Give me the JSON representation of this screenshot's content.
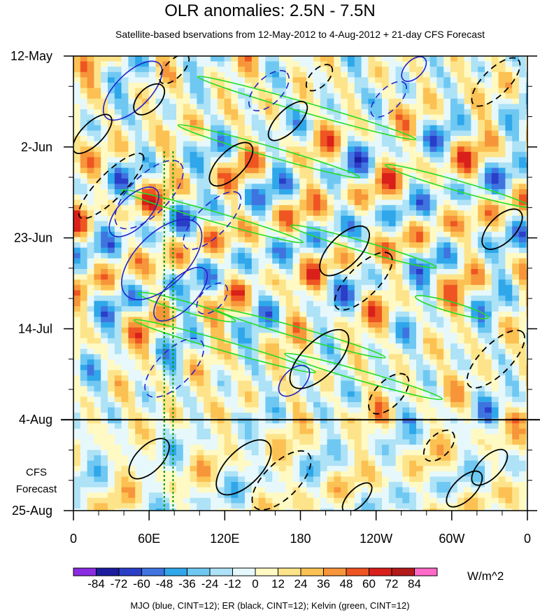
{
  "title": "OLR anomalies: 2.5N - 7.5N",
  "subtitle": "Satellite-based bservations from 12-May-2012 to 4-Aug-2012 + 21-day CFS Forecast",
  "forecast_label": "CFS\nForecast",
  "units": "W/m^2",
  "footer": "MJO (blue, CINT=12); ER (black, CINT=12); Kelvin (green, CINT=12)",
  "colors": {
    "mjo": "#2222cc",
    "er": "#000000",
    "kelvin": "#22dd22",
    "forecast_line": "#009900",
    "divider": "#000000"
  },
  "chart_data": {
    "type": "heatmap",
    "title": "OLR anomalies: 2.5N - 7.5N",
    "xlabel": "",
    "ylabel": "",
    "x_ticks": [
      "0",
      "60E",
      "120E",
      "180",
      "120W",
      "60W",
      "0"
    ],
    "x_tick_values": [
      0,
      60,
      120,
      180,
      240,
      300,
      360
    ],
    "xlim": [
      0,
      360
    ],
    "y_ticks": [
      "12-May",
      "2-Jun",
      "23-Jun",
      "14-Jul",
      "4-Aug",
      "25-Aug"
    ],
    "y_tick_days": [
      0,
      21,
      42,
      63,
      84,
      105
    ],
    "ylim_days": [
      0,
      105
    ],
    "y_reversed": true,
    "observation_end_day": 84,
    "forecast_days": 21,
    "forecast_markers_lon": [
      72,
      79
    ],
    "colorbar": {
      "labels": [
        "-84",
        "-72",
        "-60",
        "-48",
        "-36",
        "-24",
        "-12",
        "0",
        "12",
        "24",
        "36",
        "48",
        "60",
        "72",
        "84"
      ],
      "colors": [
        "#8a2be2",
        "#1c1c9e",
        "#2a3ec8",
        "#3f74e0",
        "#2fa7ea",
        "#6fc8f2",
        "#aee2f6",
        "#e6f8fb",
        "#fff9c4",
        "#fde48a",
        "#fcc153",
        "#f7953a",
        "#ee5522",
        "#d9201a",
        "#b41a1a",
        "#ff69c8"
      ]
    },
    "series": [
      {
        "name": "MJO (blue, CINT=12)",
        "color": "#2222cc"
      },
      {
        "name": "ER (black, CINT=12)",
        "color": "#000000"
      },
      {
        "name": "Kelvin (green, CINT=12)",
        "color": "#22dd22"
      }
    ],
    "mjo_features": [
      {
        "lon": 47,
        "day": 8,
        "len_deg": 60,
        "wid_days": 8,
        "solid": true
      },
      {
        "lon": 48,
        "day": 36,
        "len_deg": 50,
        "wid_days": 7,
        "solid": true
      },
      {
        "lon": 60,
        "day": 32,
        "len_deg": 70,
        "wid_days": 9,
        "solid": false
      },
      {
        "lon": 70,
        "day": 47,
        "len_deg": 80,
        "wid_days": 12,
        "solid": true
      },
      {
        "lon": 85,
        "day": 55,
        "len_deg": 55,
        "wid_days": 7,
        "solid": true
      },
      {
        "lon": 80,
        "day": 72,
        "len_deg": 60,
        "wid_days": 8,
        "solid": false
      },
      {
        "lon": 110,
        "day": 38,
        "len_deg": 60,
        "wid_days": 7,
        "solid": false
      },
      {
        "lon": 155,
        "day": 8,
        "len_deg": 40,
        "wid_days": 6,
        "solid": false
      },
      {
        "lon": 250,
        "day": 10,
        "len_deg": 36,
        "wid_days": 5,
        "solid": false
      },
      {
        "lon": 270,
        "day": 3,
        "len_deg": 24,
        "wid_days": 4,
        "solid": true
      },
      {
        "lon": 175,
        "day": 75,
        "len_deg": 30,
        "wid_days": 5,
        "solid": true
      },
      {
        "lon": 110,
        "day": 56,
        "len_deg": 30,
        "wid_days": 5,
        "solid": false
      }
    ],
    "er_features": [
      {
        "lon": 30,
        "day": 30,
        "len_deg": 70,
        "wid_days": 6,
        "solid": false
      },
      {
        "lon": 15,
        "day": 18,
        "len_deg": 40,
        "wid_days": 5,
        "solid": true
      },
      {
        "lon": 60,
        "day": 10,
        "len_deg": 30,
        "wid_days": 5,
        "solid": true
      },
      {
        "lon": 80,
        "day": 3,
        "len_deg": 30,
        "wid_days": 4,
        "solid": false
      },
      {
        "lon": 125,
        "day": 25,
        "len_deg": 44,
        "wid_days": 6,
        "solid": true
      },
      {
        "lon": 170,
        "day": 15,
        "len_deg": 40,
        "wid_days": 5,
        "solid": true
      },
      {
        "lon": 195,
        "day": 5,
        "len_deg": 26,
        "wid_days": 4,
        "solid": false
      },
      {
        "lon": 215,
        "day": 45,
        "len_deg": 50,
        "wid_days": 7,
        "solid": true
      },
      {
        "lon": 230,
        "day": 52,
        "len_deg": 60,
        "wid_days": 7,
        "solid": false
      },
      {
        "lon": 195,
        "day": 70,
        "len_deg": 60,
        "wid_days": 8,
        "solid": true
      },
      {
        "lon": 250,
        "day": 78,
        "len_deg": 40,
        "wid_days": 6,
        "solid": false
      },
      {
        "lon": 135,
        "day": 95,
        "len_deg": 55,
        "wid_days": 8,
        "solid": true
      },
      {
        "lon": 165,
        "day": 98,
        "len_deg": 60,
        "wid_days": 8,
        "solid": false
      },
      {
        "lon": 60,
        "day": 93,
        "len_deg": 40,
        "wid_days": 6,
        "solid": true
      },
      {
        "lon": 225,
        "day": 102,
        "len_deg": 30,
        "wid_days": 4,
        "solid": true
      },
      {
        "lon": 335,
        "day": 6,
        "len_deg": 50,
        "wid_days": 6,
        "solid": false
      },
      {
        "lon": 340,
        "day": 40,
        "len_deg": 40,
        "wid_days": 6,
        "solid": true
      },
      {
        "lon": 335,
        "day": 70,
        "len_deg": 60,
        "wid_days": 7,
        "solid": false
      },
      {
        "lon": 330,
        "day": 95,
        "len_deg": 36,
        "wid_days": 5,
        "solid": true
      },
      {
        "lon": 290,
        "day": 90,
        "len_deg": 30,
        "wid_days": 5,
        "solid": false
      },
      {
        "lon": 310,
        "day": 100,
        "len_deg": 36,
        "wid_days": 5,
        "solid": true
      }
    ],
    "kelvin_features": [
      {
        "lon": 185,
        "day": 12,
        "len_deg": 180,
        "wid_days": 2
      },
      {
        "lon": 155,
        "day": 22,
        "len_deg": 150,
        "wid_days": 2
      },
      {
        "lon": 305,
        "day": 30,
        "len_deg": 120,
        "wid_days": 2
      },
      {
        "lon": 110,
        "day": 37,
        "len_deg": 150,
        "wid_days": 2
      },
      {
        "lon": 230,
        "day": 44,
        "len_deg": 120,
        "wid_days": 2
      },
      {
        "lon": 180,
        "day": 64,
        "len_deg": 140,
        "wid_days": 2
      },
      {
        "lon": 120,
        "day": 67,
        "len_deg": 150,
        "wid_days": 2
      },
      {
        "lon": 230,
        "day": 74,
        "len_deg": 130,
        "wid_days": 2
      },
      {
        "lon": 90,
        "day": 58,
        "len_deg": 80,
        "wid_days": 2
      },
      {
        "lon": 300,
        "day": 58,
        "len_deg": 60,
        "wid_days": 2
      }
    ]
  }
}
